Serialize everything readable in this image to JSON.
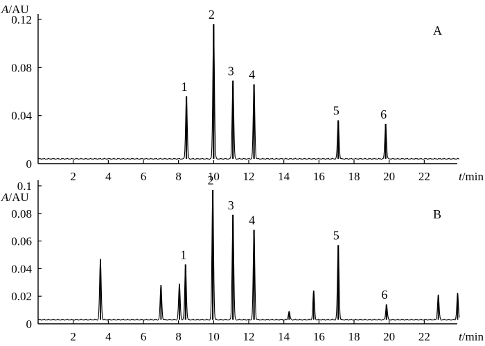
{
  "chart_data": [
    {
      "type": "line",
      "panel_letter": "A",
      "y_label": {
        "var": "A",
        "unit": "/AU"
      },
      "x_label": {
        "var": "t",
        "unit": "/min"
      },
      "xlim": [
        0,
        24
      ],
      "ylim": [
        0,
        0.12
      ],
      "x_ticks": [
        2,
        4,
        6,
        8,
        10,
        12,
        14,
        16,
        18,
        20,
        22
      ],
      "y_ticks": [
        {
          "value": 0,
          "label": "0"
        },
        {
          "value": 0.04,
          "label": "0.04"
        },
        {
          "value": 0.08,
          "label": "0.08"
        },
        {
          "value": 0.12,
          "label": "0.12"
        }
      ],
      "baseline": 0.004,
      "minor_peaks": [],
      "peaks": [
        {
          "label": "1",
          "t": 8.45,
          "height": 0.056
        },
        {
          "label": "2",
          "t": 10.0,
          "height": 0.116
        },
        {
          "label": "3",
          "t": 11.1,
          "height": 0.069
        },
        {
          "label": "4",
          "t": 12.3,
          "height": 0.066
        },
        {
          "label": "5",
          "t": 17.1,
          "height": 0.036
        },
        {
          "label": "6",
          "t": 19.8,
          "height": 0.033
        }
      ]
    },
    {
      "type": "line",
      "panel_letter": "B",
      "y_label": {
        "var": "A",
        "unit": "/AU"
      },
      "x_label": {
        "var": "t",
        "unit": "/min"
      },
      "xlim": [
        0,
        24
      ],
      "ylim": [
        0,
        0.1
      ],
      "x_ticks": [
        2,
        4,
        6,
        8,
        10,
        12,
        14,
        16,
        18,
        20,
        22
      ],
      "y_ticks": [
        {
          "value": 0,
          "label": "0"
        },
        {
          "value": 0.02,
          "label": "0.02"
        },
        {
          "value": 0.04,
          "label": "0.04"
        },
        {
          "value": 0.06,
          "label": "0.06"
        },
        {
          "value": 0.08,
          "label": "0.08"
        },
        {
          "value": 0.1,
          "label": "0.1"
        }
      ],
      "baseline": 0.003,
      "minor_peaks": [
        {
          "t": 3.55,
          "height": 0.047
        },
        {
          "t": 7.0,
          "height": 0.028
        },
        {
          "t": 8.05,
          "height": 0.029
        },
        {
          "t": 14.3,
          "height": 0.009
        },
        {
          "t": 15.7,
          "height": 0.024
        },
        {
          "t": 22.8,
          "height": 0.021
        },
        {
          "t": 23.9,
          "height": 0.022
        }
      ],
      "peaks": [
        {
          "label": "1",
          "t": 8.4,
          "height": 0.043
        },
        {
          "label": "2",
          "t": 9.95,
          "height": 0.097
        },
        {
          "label": "3",
          "t": 11.1,
          "height": 0.079
        },
        {
          "label": "4",
          "t": 12.3,
          "height": 0.068
        },
        {
          "label": "5",
          "t": 17.1,
          "height": 0.057
        },
        {
          "label": "6",
          "t": 19.85,
          "height": 0.014
        }
      ]
    }
  ]
}
